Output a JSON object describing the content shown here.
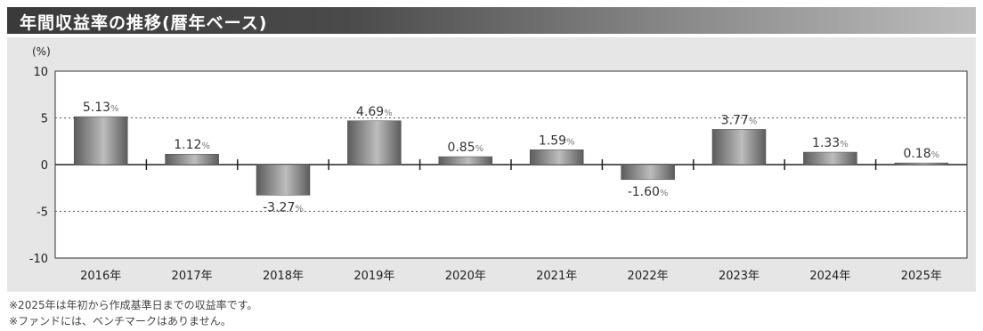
{
  "title": "年間収益率の推移(暦年ベース)",
  "unit_label": "(%)",
  "value_suffix": "%",
  "notes": [
    "※2025年は年初から作成基準日までの収益率です。",
    "※ファンドには、ベンチマークはありません。"
  ],
  "colors": {
    "bar_dark": "#5c5c5c",
    "bar_light": "#bdbdbd",
    "panel_bg": "#e6e6e6",
    "plot_bg": "#ffffff",
    "title_bg": "#3a3a3a"
  },
  "chart_data": {
    "type": "bar",
    "categories": [
      "2016年",
      "2017年",
      "2018年",
      "2019年",
      "2020年",
      "2021年",
      "2022年",
      "2023年",
      "2024年",
      "2025年"
    ],
    "values": [
      5.13,
      1.12,
      -3.27,
      4.69,
      0.85,
      1.59,
      -1.6,
      3.77,
      1.33,
      0.18
    ],
    "data_labels": [
      "5.13",
      "1.12",
      "-3.27",
      "4.69",
      "0.85",
      "1.59",
      "-1.60",
      "3.77",
      "1.33",
      "0.18"
    ],
    "ylim": [
      -10,
      10
    ],
    "yticks": [
      10,
      5,
      0,
      -5,
      -10
    ],
    "ylabel": "(%)",
    "title": "年間収益率の推移(暦年ベース)",
    "gridlines": "dotted at ±5"
  }
}
